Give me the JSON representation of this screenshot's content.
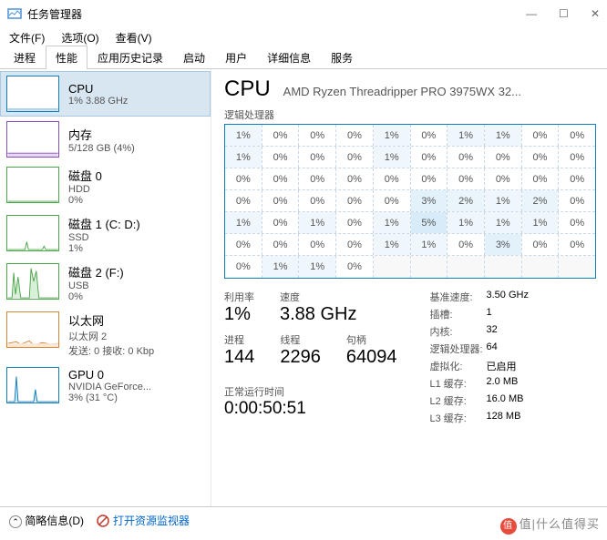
{
  "window": {
    "title": "任务管理器"
  },
  "menu": {
    "file": "文件(F)",
    "options": "选项(O)",
    "view": "查看(V)"
  },
  "tabs": [
    "进程",
    "性能",
    "应用历史记录",
    "启动",
    "用户",
    "详细信息",
    "服务"
  ],
  "active_tab": 1,
  "sidebar": [
    {
      "name": "CPU",
      "sub": "1%  3.88 GHz",
      "color": "#117dbb"
    },
    {
      "name": "内存",
      "sub": "5/128 GB (4%)",
      "color": "#8b4cbf"
    },
    {
      "name": "磁盘 0",
      "sub": "HDD",
      "sub2": "0%",
      "color": "#4ca64c"
    },
    {
      "name": "磁盘 1 (C: D:)",
      "sub": "SSD",
      "sub2": "1%",
      "color": "#4ca64c"
    },
    {
      "name": "磁盘 2 (F:)",
      "sub": "USB",
      "sub2": "0%",
      "color": "#4ca64c"
    },
    {
      "name": "以太网",
      "sub": "以太网 2",
      "sub2": "发送: 0 接收: 0 Kbp",
      "color": "#d68432"
    },
    {
      "name": "GPU 0",
      "sub": "NVIDIA GeForce...",
      "sub2": "3% (31 °C)",
      "color": "#117dbb"
    }
  ],
  "main": {
    "title": "CPU",
    "name": "AMD Ryzen Threadripper PRO 3975WX 32...",
    "coreslabel": "逻辑处理器",
    "cores": [
      [
        1,
        0,
        0,
        0,
        1,
        0,
        1,
        1,
        0,
        0
      ],
      [
        1,
        0,
        0,
        0,
        1,
        0,
        0,
        0,
        0,
        0
      ],
      [
        0,
        0,
        0,
        0,
        0,
        0,
        0,
        0,
        0,
        0
      ],
      [
        0,
        0,
        0,
        0,
        0,
        3,
        2,
        1,
        2,
        0
      ],
      [
        1,
        0,
        1,
        0,
        1,
        5,
        1,
        1,
        1,
        0
      ],
      [
        0,
        0,
        0,
        0,
        1,
        1,
        0,
        3,
        0,
        0
      ],
      [
        0,
        1,
        1,
        0,
        null,
        null,
        null,
        null,
        null,
        null
      ]
    ],
    "stats1": [
      {
        "label": "利用率",
        "val": "1%"
      },
      {
        "label": "进程",
        "val": "144"
      }
    ],
    "stats2": [
      {
        "label": "速度",
        "val": "3.88 GHz"
      },
      {
        "label": "线程",
        "val": "2296"
      }
    ],
    "stats3": [
      {
        "label": "",
        "val": ""
      },
      {
        "label": "句柄",
        "val": "64094"
      }
    ],
    "uptime_label": "正常运行时间",
    "uptime": "0:00:50:51",
    "details": [
      {
        "k": "基准速度:",
        "v": "3.50 GHz"
      },
      {
        "k": "插槽:",
        "v": "1"
      },
      {
        "k": "内核:",
        "v": "32"
      },
      {
        "k": "逻辑处理器:",
        "v": "64"
      },
      {
        "k": "虚拟化:",
        "v": "已启用"
      },
      {
        "k": "L1 缓存:",
        "v": "2.0 MB"
      },
      {
        "k": "L2 缓存:",
        "v": "16.0 MB"
      },
      {
        "k": "L3 缓存:",
        "v": "128 MB"
      }
    ]
  },
  "footer": {
    "fewer": "简略信息(D)",
    "resmon": "打开资源监视器"
  },
  "watermark": "值|什么值得买"
}
